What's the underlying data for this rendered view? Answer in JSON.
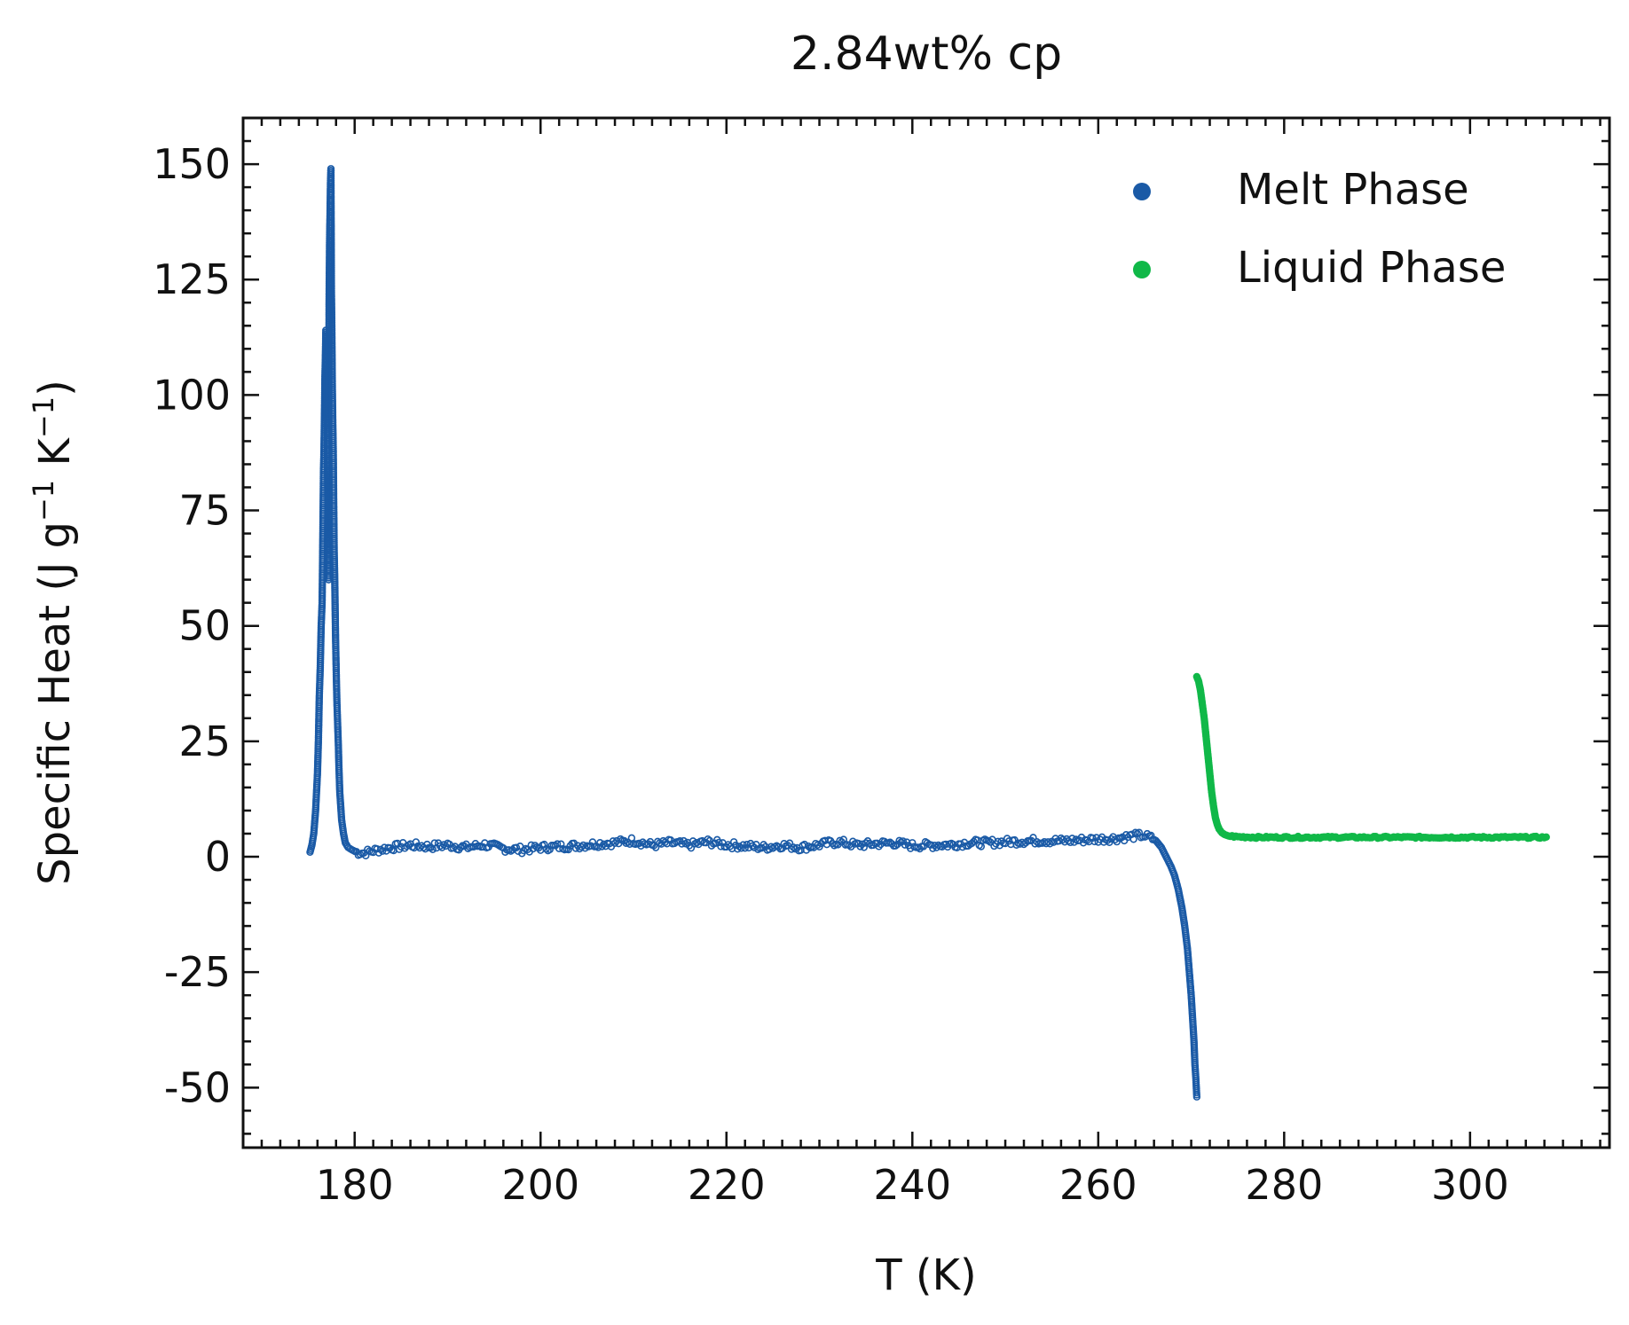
{
  "chart_data": {
    "type": "scatter",
    "title": "2.84wt% cp",
    "xlabel": "T (K)",
    "ylabel": {
      "base": "Specific Heat (J g",
      "exp1": "−1",
      "mid": " K",
      "exp2": "−1",
      "end": ")"
    },
    "xlim": [
      168,
      315
    ],
    "ylim": [
      -63,
      160
    ],
    "xticks": [
      180,
      200,
      220,
      240,
      260,
      280,
      300
    ],
    "xtick_labels": [
      "180",
      "200",
      "220",
      "240",
      "260",
      "280",
      "300"
    ],
    "yticks": [
      150,
      125,
      100,
      75,
      50,
      25,
      0,
      -25,
      -50
    ],
    "ytick_labels": [
      "150",
      "125",
      "100",
      "75",
      "50",
      "25",
      "0",
      "-25",
      "-50"
    ],
    "grid": false,
    "legend_position": "top-right",
    "series": [
      {
        "name": "Melt Phase",
        "color": "#1a5aa6",
        "marker": "hollow-circle",
        "points": [
          [
            175.2,
            1.0
          ],
          [
            175.4,
            2.5
          ],
          [
            175.6,
            5.0
          ],
          [
            175.8,
            10.0
          ],
          [
            176.0,
            18.0
          ],
          [
            176.1,
            25.0
          ],
          [
            176.2,
            35.0
          ],
          [
            176.3,
            41.0
          ],
          [
            176.4,
            50.0
          ],
          [
            176.5,
            55.0
          ],
          [
            176.55,
            64.0
          ],
          [
            176.6,
            74.0
          ],
          [
            176.65,
            84.0
          ],
          [
            176.7,
            88.0
          ],
          [
            176.75,
            95.0
          ],
          [
            176.8,
            104.0
          ],
          [
            176.85,
            108.0
          ],
          [
            176.9,
            114.0
          ],
          [
            176.95,
            110.0
          ],
          [
            177.0,
            100.0
          ],
          [
            177.05,
            90.0
          ],
          [
            177.1,
            80.0
          ],
          [
            177.15,
            70.0
          ],
          [
            177.2,
            60.0
          ],
          [
            177.25,
            120.0
          ],
          [
            177.3,
            133.0
          ],
          [
            177.35,
            139.0
          ],
          [
            177.4,
            146.0
          ],
          [
            177.45,
            149.0
          ],
          [
            177.5,
            123.0
          ],
          [
            177.55,
            114.0
          ],
          [
            177.6,
            102.0
          ],
          [
            177.65,
            94.0
          ],
          [
            177.7,
            88.0
          ],
          [
            177.75,
            76.0
          ],
          [
            177.8,
            66.0
          ],
          [
            177.85,
            61.0
          ],
          [
            177.9,
            54.0
          ],
          [
            177.95,
            47.0
          ],
          [
            178.0,
            42.0
          ],
          [
            178.05,
            37.0
          ],
          [
            178.1,
            33.0
          ],
          [
            178.15,
            30.0
          ],
          [
            178.2,
            27.0
          ],
          [
            178.25,
            24.0
          ],
          [
            178.3,
            20.0
          ],
          [
            178.35,
            17.0
          ],
          [
            178.4,
            14.0
          ],
          [
            178.5,
            11.0
          ],
          [
            178.6,
            8.0
          ],
          [
            178.8,
            5.0
          ],
          [
            179.0,
            3.0
          ],
          [
            179.3,
            2.0
          ],
          [
            179.7,
            1.5
          ],
          [
            180.2,
            1.0
          ],
          [
            181.0,
            0.8
          ],
          [
            182.0,
            1.3
          ],
          [
            184.0,
            2.0
          ],
          [
            186.0,
            2.5
          ],
          [
            188.0,
            2.2
          ],
          [
            190.0,
            2.5
          ],
          [
            192.0,
            2.0
          ],
          [
            194.0,
            2.6
          ],
          [
            196.0,
            1.8
          ],
          [
            198.0,
            1.5
          ],
          [
            200.0,
            2.0
          ],
          [
            202.0,
            2.2
          ],
          [
            204.0,
            2.4
          ],
          [
            206.0,
            2.8
          ],
          [
            208.0,
            3.0
          ],
          [
            210.0,
            3.5
          ],
          [
            212.0,
            2.5
          ],
          [
            214.0,
            3.0
          ],
          [
            216.0,
            2.5
          ],
          [
            218.0,
            3.2
          ],
          [
            220.0,
            2.6
          ],
          [
            222.0,
            2.3
          ],
          [
            224.0,
            2.0
          ],
          [
            226.0,
            2.5
          ],
          [
            228.0,
            2.0
          ],
          [
            230.0,
            2.6
          ],
          [
            232.0,
            3.2
          ],
          [
            234.0,
            2.5
          ],
          [
            236.0,
            2.8
          ],
          [
            238.0,
            3.0
          ],
          [
            240.0,
            2.4
          ],
          [
            242.0,
            2.5
          ],
          [
            244.0,
            2.6
          ],
          [
            246.0,
            3.0
          ],
          [
            248.0,
            3.0
          ],
          [
            250.0,
            3.2
          ],
          [
            252.0,
            3.4
          ],
          [
            254.0,
            3.5
          ],
          [
            256.0,
            3.4
          ],
          [
            258.0,
            3.6
          ],
          [
            260.0,
            3.8
          ],
          [
            262.0,
            4.0
          ],
          [
            263.0,
            4.3
          ],
          [
            264.0,
            4.5
          ],
          [
            264.8,
            4.6
          ],
          [
            265.5,
            4.2
          ],
          [
            266.2,
            3.5
          ],
          [
            266.8,
            2.0
          ],
          [
            267.3,
            0.0
          ],
          [
            267.8,
            -2.0
          ],
          [
            268.2,
            -4.0
          ],
          [
            268.6,
            -7.0
          ],
          [
            269.0,
            -11.0
          ],
          [
            269.3,
            -15.0
          ],
          [
            269.6,
            -20.0
          ],
          [
            269.8,
            -25.0
          ],
          [
            270.0,
            -30.0
          ],
          [
            270.15,
            -35.0
          ],
          [
            270.3,
            -40.0
          ],
          [
            270.4,
            -45.0
          ],
          [
            270.5,
            -48.0
          ],
          [
            270.6,
            -52.0
          ]
        ]
      },
      {
        "name": "Liquid Phase",
        "color": "#10b848",
        "marker": "filled-circle",
        "points": [
          [
            270.6,
            39.0
          ],
          [
            270.8,
            38.0
          ],
          [
            271.0,
            36.0
          ],
          [
            271.2,
            33.0
          ],
          [
            271.4,
            30.0
          ],
          [
            271.6,
            26.0
          ],
          [
            271.8,
            22.0
          ],
          [
            272.0,
            18.0
          ],
          [
            272.2,
            14.0
          ],
          [
            272.4,
            11.0
          ],
          [
            272.6,
            8.5
          ],
          [
            272.8,
            7.0
          ],
          [
            273.0,
            6.0
          ],
          [
            273.3,
            5.2
          ],
          [
            273.6,
            4.8
          ],
          [
            274.0,
            4.5
          ],
          [
            275.0,
            4.3
          ],
          [
            277.0,
            4.2
          ],
          [
            280.0,
            4.2
          ],
          [
            283.0,
            4.2
          ],
          [
            286.0,
            4.2
          ],
          [
            289.0,
            4.2
          ],
          [
            292.0,
            4.2
          ],
          [
            295.0,
            4.2
          ],
          [
            298.0,
            4.2
          ],
          [
            301.0,
            4.2
          ],
          [
            304.0,
            4.2
          ],
          [
            306.0,
            4.2
          ],
          [
            308.2,
            4.2
          ]
        ]
      }
    ]
  }
}
